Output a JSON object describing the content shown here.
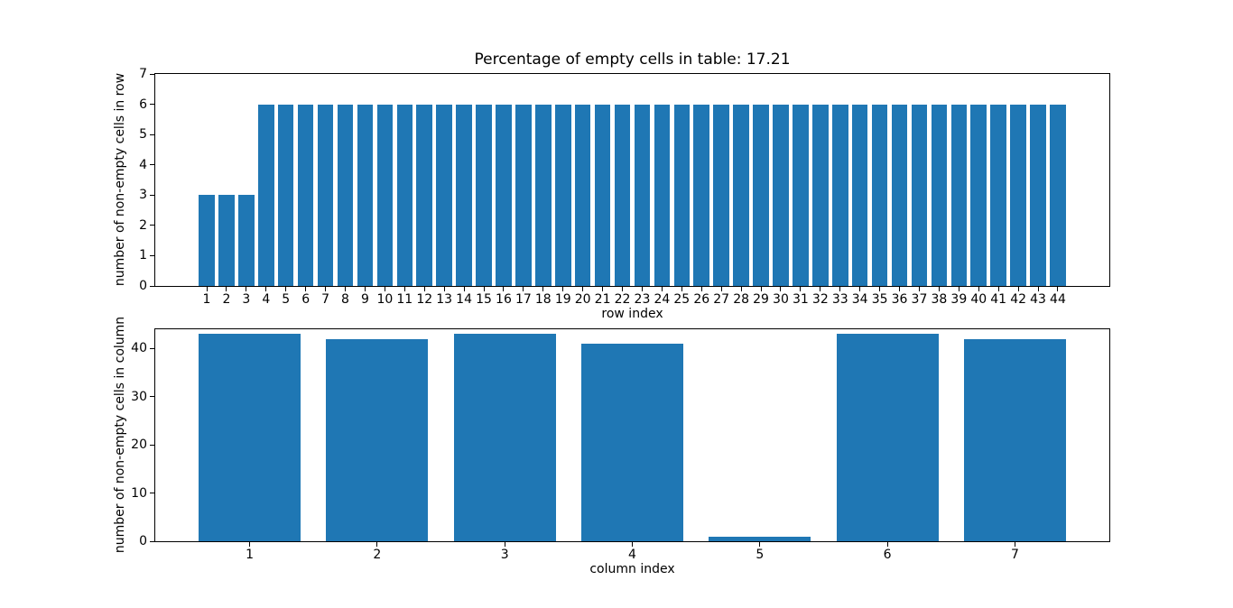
{
  "figure": {
    "background": "#ffffff",
    "bar_color": "#1f77b4"
  },
  "chart_data": [
    {
      "type": "bar",
      "title": "Percentage of empty cells in table: 17.21",
      "xlabel": "row index",
      "ylabel": "number of non-empty cells in row",
      "categories": [
        1,
        2,
        3,
        4,
        5,
        6,
        7,
        8,
        9,
        10,
        11,
        12,
        13,
        14,
        15,
        16,
        17,
        18,
        19,
        20,
        21,
        22,
        23,
        24,
        25,
        26,
        27,
        28,
        29,
        30,
        31,
        32,
        33,
        34,
        35,
        36,
        37,
        38,
        39,
        40,
        41,
        42,
        43,
        44
      ],
      "values": [
        3,
        3,
        3,
        6,
        6,
        6,
        6,
        6,
        6,
        6,
        6,
        6,
        6,
        6,
        6,
        6,
        6,
        6,
        6,
        6,
        6,
        6,
        6,
        6,
        6,
        6,
        6,
        6,
        6,
        6,
        6,
        6,
        6,
        6,
        6,
        6,
        6,
        6,
        6,
        6,
        6,
        6,
        6,
        6
      ],
      "bar_color": "#1f77b4",
      "bar_width": 0.8,
      "xlim": [
        -1.6,
        46.6
      ],
      "ylim": [
        0,
        7
      ],
      "yticks": [
        0,
        1,
        2,
        3,
        4,
        5,
        6,
        7
      ],
      "grid": false,
      "legend": null
    },
    {
      "type": "bar",
      "title": "",
      "xlabel": "column index",
      "ylabel": "number of non-empty cells in column",
      "categories": [
        1,
        2,
        3,
        4,
        5,
        6,
        7
      ],
      "values": [
        43,
        42,
        43,
        41,
        1,
        43,
        42
      ],
      "bar_color": "#1f77b4",
      "bar_width": 0.8,
      "xlim": [
        0.26,
        7.74
      ],
      "ylim": [
        0,
        44
      ],
      "yticks": [
        0,
        10,
        20,
        30,
        40
      ],
      "grid": false,
      "legend": null
    }
  ]
}
